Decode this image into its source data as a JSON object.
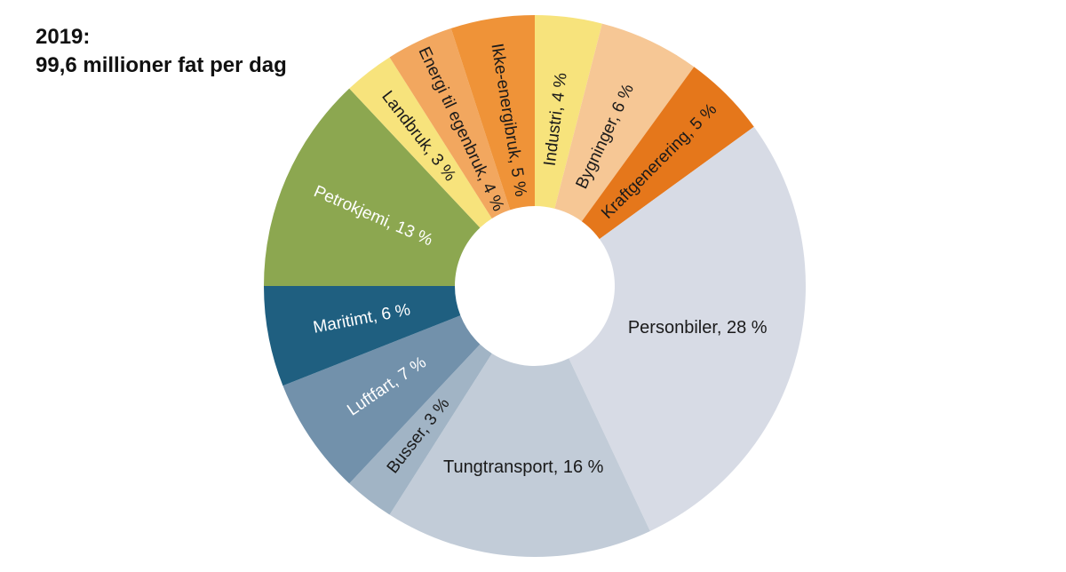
{
  "title": {
    "line1": "2019:",
    "line2": "99,6 millioner fat per dag"
  },
  "chart_data": {
    "type": "pie",
    "subtype": "donut",
    "title": "2019: 99,6 millioner fat per dag",
    "unit": "%",
    "total_percent": 100,
    "start_angle_deg": 0,
    "direction": "clockwise",
    "label_format": "{name}, {value} %",
    "slices": [
      {
        "label": "Industri",
        "value": 4,
        "color": "#f7e37c",
        "label_color": "#1a1a1a",
        "label_mode": "out",
        "label_r": 0.62
      },
      {
        "label": "Bygninger",
        "value": 6,
        "color": "#f6c795",
        "label_color": "#1a1a1a",
        "label_mode": "out",
        "label_r": 0.61
      },
      {
        "label": "Kraftgenerering",
        "value": 5,
        "color": "#e5771b",
        "label_color": "#1a1a1a",
        "label_mode": "out",
        "label_r": 0.65
      },
      {
        "label": "Personbiler",
        "value": 28,
        "color": "#d7dbe5",
        "label_color": "#1a1a1a",
        "label_mode": "horizontal",
        "label_r": 0.62
      },
      {
        "label": "Tungtransport",
        "value": 16,
        "color": "#c2ccd8",
        "label_color": "#1a1a1a",
        "label_mode": "horizontal",
        "label_r": 0.67
      },
      {
        "label": "Busser",
        "value": 3,
        "color": "#a1b4c5",
        "label_color": "#1a1a1a",
        "label_mode": "in",
        "label_r": 0.7
      },
      {
        "label": "Luftfart",
        "value": 7,
        "color": "#7291ab",
        "label_color": "#ffffff",
        "label_mode": "in",
        "label_r": 0.66
      },
      {
        "label": "Maritimt",
        "value": 6,
        "color": "#1f5f80",
        "label_color": "#ffffff",
        "label_mode": "in",
        "label_r": 0.65
      },
      {
        "label": "Petrokjemi",
        "value": 13,
        "color": "#8ca750",
        "label_color": "#ffffff",
        "label_mode": "in",
        "label_r": 0.65
      },
      {
        "label": "Landbruk",
        "value": 3,
        "color": "#f7e37c",
        "label_color": "#1a1a1a",
        "label_mode": "in",
        "label_r": 0.7
      },
      {
        "label": "Energi til egenbruk",
        "value": 4,
        "color": "#f2a75f",
        "label_color": "#1a1a1a",
        "label_mode": "in",
        "label_r": 0.64
      },
      {
        "label": "Ikke-energibruk",
        "value": 5,
        "color": "#ef9338",
        "label_color": "#1a1a1a",
        "label_mode": "in",
        "label_r": 0.62
      }
    ]
  }
}
